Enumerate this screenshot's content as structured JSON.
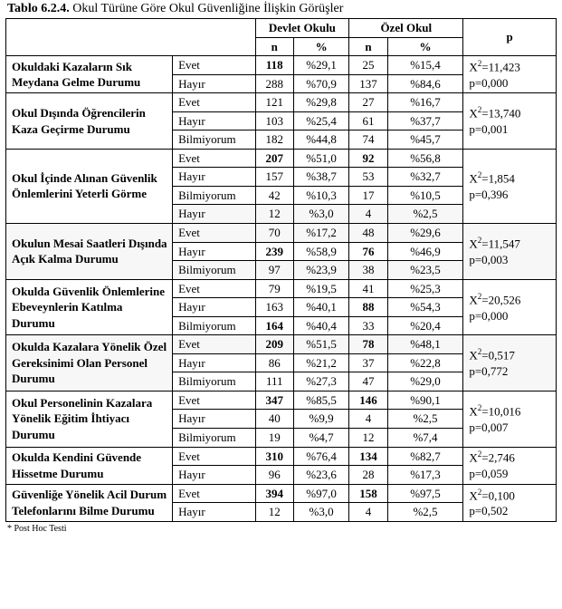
{
  "caption_prefix": "Tablo 6.2.4.",
  "caption_rest": " Okul Türüne Göre Okul Güvenliğine İlişkin Görüşler",
  "header": {
    "devlet": "Devlet Okulu",
    "ozel": "Özel Okul",
    "p": "p",
    "n": "n",
    "pct": "%"
  },
  "footnote": "* Post Hoc Testi",
  "sections": [
    {
      "label": "Okuldaki Kazaların Sık Meydana Gelme Durumu",
      "p_lines": [
        "X²=11,423",
        "p=0,000"
      ],
      "rows": [
        {
          "ans": "Evet",
          "n1": "118",
          "n1_bold": true,
          "pct1": "%29,1",
          "n2": "25",
          "pct2": "%15,4"
        },
        {
          "ans": "Hayır",
          "n1": "288",
          "pct1": "%70,9",
          "n2": "137",
          "pct2": "%84,6"
        }
      ]
    },
    {
      "label": "Okul Dışında Öğrencilerin Kaza Geçirme Durumu",
      "p_lines": [
        "X²=13,740",
        "p=0,001"
      ],
      "rows": [
        {
          "ans": "Evet",
          "n1": "121",
          "pct1": "%29,8",
          "n2": "27",
          "pct2": "%16,7"
        },
        {
          "ans": "Hayır",
          "n1": "103",
          "pct1": "%25,4",
          "n2": "61",
          "pct2": "%37,7"
        },
        {
          "ans": "Bilmiyorum",
          "n1": "182",
          "pct1": "%44,8",
          "n2": "74",
          "pct2": "%45,7"
        }
      ]
    },
    {
      "label": "Okul İçinde Alınan Güvenlik Önlemlerini Yeterli Görme",
      "p_lines": [
        "X²=1,854",
        "p=0,396"
      ],
      "rows": [
        {
          "ans": "Evet",
          "n1": "207",
          "n1_bold": true,
          "pct1": "%51,0",
          "n2": "92",
          "n2_bold": true,
          "pct2": "%56,8"
        },
        {
          "ans": "Hayır",
          "n1": "157",
          "pct1": "%38,7",
          "n2": "53",
          "pct2": "%32,7"
        },
        {
          "ans": "Bilmiyorum",
          "n1": "42",
          "pct1": "%10,3",
          "n2": "17",
          "pct2": "%10,5"
        },
        {
          "ans": "Hayır",
          "n1": "12",
          "pct1": "%3,0",
          "n2": "4",
          "pct2": "%2,5",
          "shade": true
        }
      ]
    },
    {
      "label": "Okulun Mesai Saatleri Dışında Açık Kalma Durumu",
      "p_lines": [
        "X²=11,547",
        "p=0,003"
      ],
      "rows": [
        {
          "ans": "Evet",
          "n1": "70",
          "pct1": "%17,2",
          "n2": "48",
          "pct2": "%29,6",
          "shade": true
        },
        {
          "ans": "Hayır",
          "n1": "239",
          "n1_bold": true,
          "pct1": "%58,9",
          "n2": "76",
          "n2_bold": true,
          "pct2": "%46,9"
        },
        {
          "ans": "Bilmiyorum",
          "n1": "97",
          "pct1": "%23,9",
          "n2": "38",
          "pct2": "%23,5",
          "shade": true
        }
      ]
    },
    {
      "label": "Okulda Güvenlik Önlemlerine Ebeveynlerin Katılma Durumu",
      "p_lines": [
        "X²=20,526",
        "p=0,000"
      ],
      "rows": [
        {
          "ans": "Evet",
          "n1": "79",
          "pct1": "%19,5",
          "n2": "41",
          "pct2": "%25,3"
        },
        {
          "ans": "Hayır",
          "n1": "163",
          "pct1": "%40,1",
          "n2": "88",
          "n2_bold": true,
          "pct2": "%54,3"
        },
        {
          "ans": "Bilmiyorum",
          "n1": "164",
          "n1_bold": true,
          "pct1": "%40,4",
          "n2": "33",
          "pct2": "%20,4"
        }
      ]
    },
    {
      "label": "Okulda Kazalara Yönelik Özel Gereksinimi Olan Personel Durumu",
      "p_lines": [
        "X²=0,517",
        "p=0,772"
      ],
      "rows": [
        {
          "ans": "Evet",
          "n1": "209",
          "n1_bold": true,
          "pct1": "%51,5",
          "n2": "78",
          "n2_bold": true,
          "pct2": "%48,1",
          "shade": true
        },
        {
          "ans": "Hayır",
          "n1": "86",
          "pct1": "%21,2",
          "n2": "37",
          "pct2": "%22,8"
        },
        {
          "ans": "Bilmiyorum",
          "n1": "111",
          "pct1": "%27,3",
          "n2": "47",
          "pct2": "%29,0"
        }
      ]
    },
    {
      "label": "Okul Personelinin Kazalara Yönelik Eğitim İhtiyacı Durumu",
      "p_lines": [
        "X²=10,016",
        "p=0,007"
      ],
      "rows": [
        {
          "ans": "Evet",
          "n1": "347",
          "n1_bold": true,
          "pct1": "%85,5",
          "n2": "146",
          "n2_bold": true,
          "pct2": "%90,1"
        },
        {
          "ans": "Hayır",
          "n1": "40",
          "pct1": "%9,9",
          "n2": "4",
          "pct2": "%2,5"
        },
        {
          "ans": "Bilmiyorum",
          "n1": "19",
          "pct1": "%4,7",
          "n2": "12",
          "pct2": "%7,4"
        }
      ]
    },
    {
      "label": "Okulda Kendini Güvende Hissetme Durumu",
      "p_lines": [
        "X²=2,746",
        "p=0,059"
      ],
      "rows": [
        {
          "ans": "Evet",
          "n1": "310",
          "n1_bold": true,
          "pct1": "%76,4",
          "n2": "134",
          "n2_bold": true,
          "pct2": "%82,7"
        },
        {
          "ans": "Hayır",
          "n1": "96",
          "pct1": "%23,6",
          "n2": "28",
          "pct2": "%17,3"
        }
      ]
    },
    {
      "label": "Güvenliğe Yönelik Acil Durum Telefonlarını Bilme Durumu",
      "p_lines": [
        "X²=0,100",
        "p=0,502"
      ],
      "rows": [
        {
          "ans": "Evet",
          "n1": "394",
          "n1_bold": true,
          "pct1": "%97,0",
          "n2": "158",
          "n2_bold": true,
          "pct2": "%97,5"
        },
        {
          "ans": "Hayır",
          "n1": "12",
          "pct1": "%3,0",
          "n2": "4",
          "pct2": "%2,5"
        }
      ]
    }
  ]
}
